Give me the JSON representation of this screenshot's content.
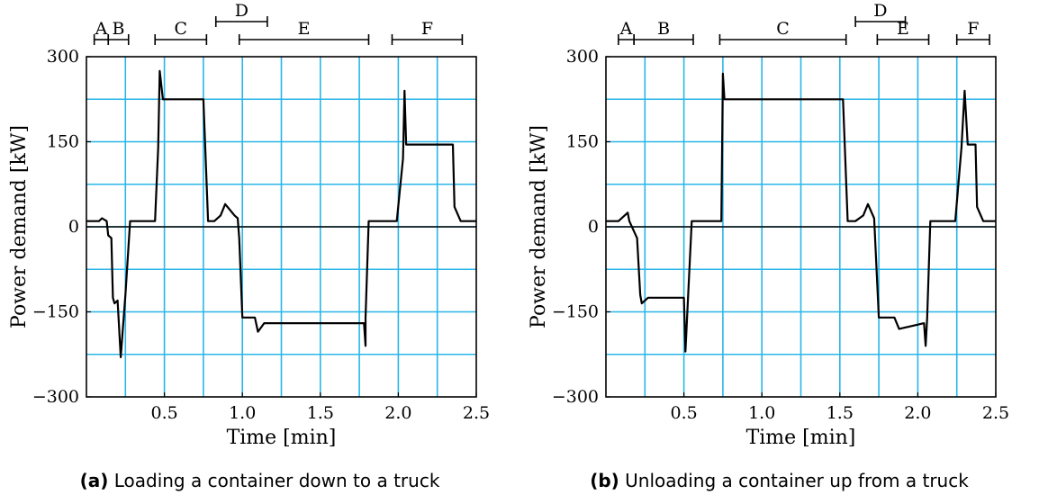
{
  "chart_data": [
    {
      "type": "line",
      "caption_tag": "(a)",
      "caption_text": "Loading a container down to a truck",
      "xlabel": "Time [min]",
      "ylabel": "Power demand [kW]",
      "xlim": [
        0,
        2.5
      ],
      "ylim": [
        -300,
        300
      ],
      "xticks": [
        0.5,
        1.0,
        1.5,
        2.0,
        2.5
      ],
      "xtick_labels": [
        "0.5",
        "1.0",
        "1.5",
        "2.0",
        "2.5"
      ],
      "yticks": [
        300,
        150,
        0,
        -150,
        -300
      ],
      "ytick_labels": [
        "300",
        "150",
        "0",
        "−150",
        "−300"
      ],
      "grid": true,
      "phases": [
        {
          "label": "A",
          "start": 0.05,
          "end": 0.14,
          "level": 0
        },
        {
          "label": "B",
          "start": 0.14,
          "end": 0.27,
          "level": 0
        },
        {
          "label": "C",
          "start": 0.44,
          "end": 0.77,
          "level": 0
        },
        {
          "label": "D",
          "start": 0.83,
          "end": 1.16,
          "level": 1
        },
        {
          "label": "E",
          "start": 0.98,
          "end": 1.81,
          "level": 0
        },
        {
          "label": "F",
          "start": 1.96,
          "end": 2.41,
          "level": 0
        }
      ],
      "series": [
        {
          "x": [
            0,
            0.08,
            0.1,
            0.13,
            0.14,
            0.16,
            0.17,
            0.18,
            0.2,
            0.22,
            0.25,
            0.28,
            0.44,
            0.46,
            0.47,
            0.49,
            0.75,
            0.78,
            0.82,
            0.86,
            0.89,
            0.95,
            0.97,
            0.98,
            1.0,
            1.08,
            1.1,
            1.14,
            1.78,
            1.79,
            1.79,
            1.81,
            1.99,
            2.03,
            2.04,
            2.05,
            2.35,
            2.36,
            2.4,
            2.5
          ],
          "y": [
            10,
            10,
            15,
            10,
            -15,
            -20,
            -125,
            -135,
            -130,
            -230,
            -120,
            10,
            10,
            140,
            275,
            225,
            225,
            10,
            10,
            20,
            40,
            20,
            15,
            -20,
            -160,
            -160,
            -185,
            -170,
            -170,
            -210,
            -160,
            10,
            10,
            120,
            240,
            145,
            145,
            35,
            10,
            10
          ]
        }
      ]
    },
    {
      "type": "line",
      "caption_tag": "(b)",
      "caption_text": "Unloading a container up from a truck",
      "xlabel": "Time [min]",
      "ylabel": "Power demand [kW]",
      "xlim": [
        0,
        2.5
      ],
      "ylim": [
        -300,
        300
      ],
      "xticks": [
        0.5,
        1.0,
        1.5,
        2.0,
        2.5
      ],
      "xtick_labels": [
        "0.5",
        "1.0",
        "1.5",
        "2.0",
        "2.5"
      ],
      "yticks": [
        300,
        150,
        0,
        -150,
        -300
      ],
      "ytick_labels": [
        "300",
        "150",
        "0",
        "−150",
        "−300"
      ],
      "grid": true,
      "phases": [
        {
          "label": "A",
          "start": 0.08,
          "end": 0.18,
          "level": 0
        },
        {
          "label": "B",
          "start": 0.18,
          "end": 0.56,
          "level": 0
        },
        {
          "label": "C",
          "start": 0.73,
          "end": 1.54,
          "level": 0
        },
        {
          "label": "D",
          "start": 1.6,
          "end": 1.92,
          "level": 1
        },
        {
          "label": "E",
          "start": 1.74,
          "end": 2.07,
          "level": 0
        },
        {
          "label": "F",
          "start": 2.25,
          "end": 2.46,
          "level": 0
        }
      ],
      "series": [
        {
          "x": [
            0,
            0.08,
            0.14,
            0.15,
            0.2,
            0.22,
            0.23,
            0.27,
            0.5,
            0.51,
            0.55,
            0.72,
            0.74,
            0.75,
            0.76,
            1.52,
            1.55,
            1.6,
            1.65,
            1.68,
            1.72,
            1.75,
            1.85,
            1.88,
            2.04,
            2.05,
            2.06,
            2.08,
            2.24,
            2.28,
            2.3,
            2.32,
            2.37,
            2.38,
            2.42,
            2.5
          ],
          "y": [
            10,
            10,
            25,
            10,
            -20,
            -120,
            -135,
            -125,
            -125,
            -220,
            10,
            10,
            10,
            270,
            225,
            225,
            10,
            10,
            20,
            40,
            15,
            -160,
            -160,
            -180,
            -170,
            -210,
            -160,
            10,
            10,
            140,
            240,
            145,
            145,
            35,
            10,
            10
          ]
        }
      ]
    }
  ]
}
